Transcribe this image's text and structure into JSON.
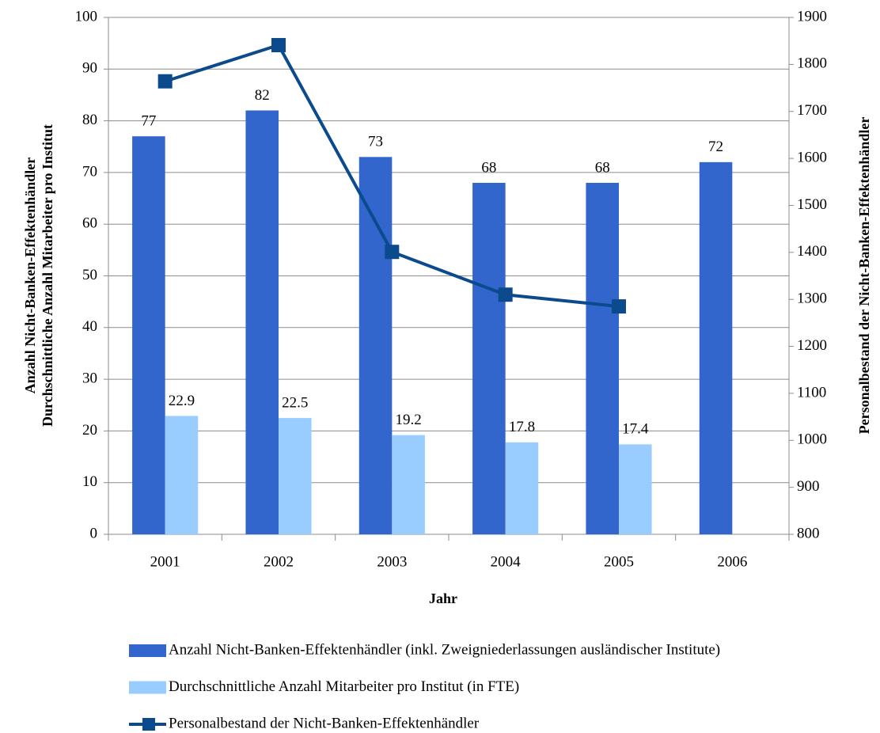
{
  "chart_data": {
    "type": "bar",
    "categories": [
      "2001",
      "2002",
      "2003",
      "2004",
      "2005",
      "2006"
    ],
    "series": [
      {
        "name": "Anzahl Nicht-Banken-Effektenhändler (inkl. Zweigniederlassungen ausländischer Institute)",
        "color": "#3366cc",
        "type": "bar",
        "values": [
          77,
          82,
          73,
          68,
          68,
          72
        ]
      },
      {
        "name": "Durchschnittliche Anzahl Mitarbeiter pro Institut (in FTE)",
        "color": "#99ccff",
        "type": "bar",
        "values": [
          22.9,
          22.5,
          19.2,
          17.8,
          17.4,
          null
        ]
      },
      {
        "name": "Personalbestand der Nicht-Banken-Effektenhändler",
        "color": "#0b4a8c",
        "type": "line",
        "axis": "y2",
        "values": [
          1764,
          1841,
          1401,
          1310,
          1285,
          null
        ]
      }
    ],
    "ylim": [
      0,
      100
    ],
    "yticks": [
      0,
      10,
      20,
      30,
      40,
      50,
      60,
      70,
      80,
      90,
      100
    ],
    "y2lim": [
      800,
      1900
    ],
    "y2ticks": [
      800,
      900,
      1000,
      1100,
      1200,
      1300,
      1400,
      1500,
      1600,
      1700,
      1800,
      1900
    ],
    "x_label": "Jahr",
    "y_label": [
      "Anzahl Nicht-Banken-Effektenhändler",
      "Durchschnittliche Anzahl Mitarbeiter pro Institut"
    ],
    "y2_label": "Personalbestand der Nicht-Banken-Effektenhändler",
    "grid": true,
    "legend": "bottom"
  }
}
